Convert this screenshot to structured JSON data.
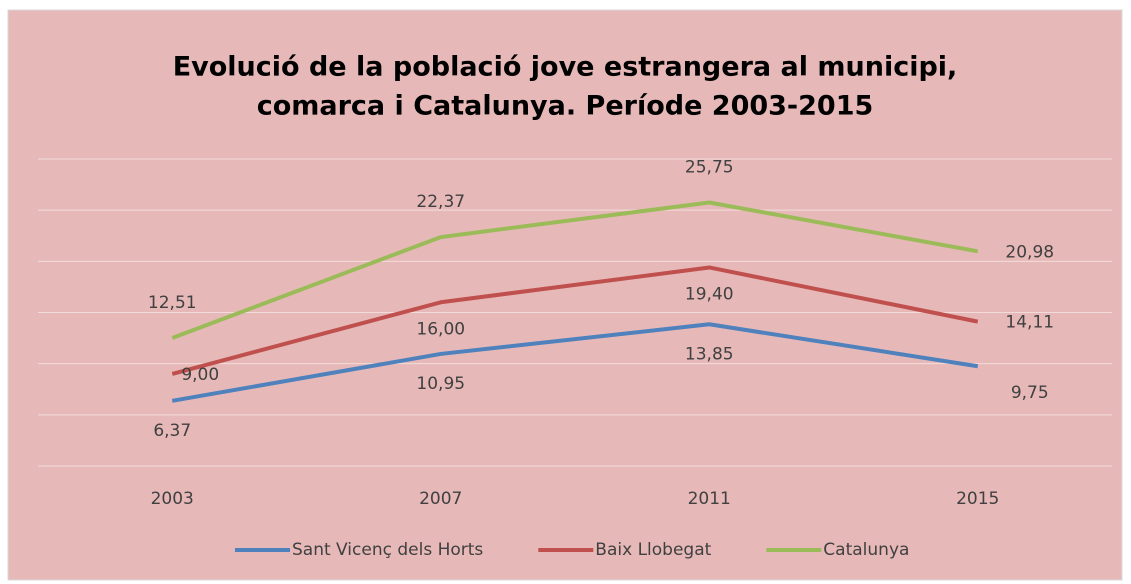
{
  "chart_data": {
    "type": "line",
    "title": [
      "Evolució de la població jove estrangera al municipi,",
      "comarca i Catalunya. Període 2003-2015"
    ],
    "categories": [
      "2003",
      "2007",
      "2011",
      "2015"
    ],
    "series": [
      {
        "name": "Sant Vicenç dels Horts",
        "color": "#4f81bd",
        "values": [
          6.37,
          10.95,
          13.85,
          9.75
        ],
        "value_labels": [
          "6,37",
          "10,95",
          "13,85",
          "9,75"
        ]
      },
      {
        "name": "Baix Llobegat",
        "color": "#c0504d",
        "values": [
          9.0,
          16.0,
          19.4,
          14.11
        ],
        "value_labels": [
          "9,00",
          "16,00",
          "19,40",
          "14,11"
        ]
      },
      {
        "name": "Catalunya",
        "color": "#9bbb59",
        "values": [
          12.51,
          22.37,
          25.75,
          20.98
        ],
        "value_labels": [
          "12,51",
          "22,37",
          "25,75",
          "20,98"
        ]
      }
    ],
    "ylim": [
      0,
      30
    ],
    "yticks": [
      0,
      5,
      10,
      15,
      20,
      25,
      30
    ],
    "grid": true,
    "legend": "bottom"
  }
}
